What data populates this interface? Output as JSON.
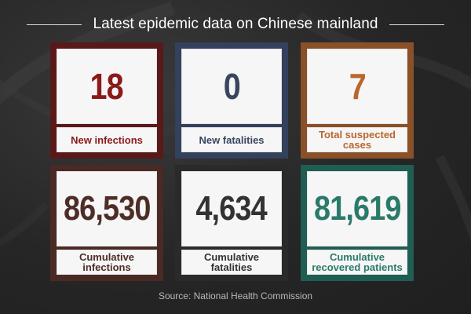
{
  "header": {
    "title": "Latest epidemic data on Chinese mainland"
  },
  "cards": [
    {
      "value": "18",
      "label": "New infections",
      "frame_color": "#5a1919",
      "value_color": "#8b1a1a",
      "label_color": "#8b1a1a"
    },
    {
      "value": "0",
      "label": "New fatalities",
      "frame_color": "#34415c",
      "value_color": "#3a4560",
      "label_color": "#3a4560"
    },
    {
      "value": "7",
      "label": "Total suspected cases",
      "frame_color": "#8a5028",
      "value_color": "#b8682e",
      "label_color": "#b8682e"
    },
    {
      "value": "86,530",
      "label": "Cumulative infections",
      "frame_color": "#4a2a24",
      "value_color": "#4e2d27",
      "label_color": "#4e2d27"
    },
    {
      "value": "4,634",
      "label": "Cumulative fatalities",
      "frame_color": "#2a2a2a",
      "value_color": "#333333",
      "label_color": "#333333"
    },
    {
      "value": "81,619",
      "label": "Cumulative recovered patients",
      "frame_color": "#1f5e52",
      "value_color": "#2a7a6a",
      "label_color": "#2a7a6a"
    }
  ],
  "footer": {
    "source": "Source: National Health Commission"
  }
}
